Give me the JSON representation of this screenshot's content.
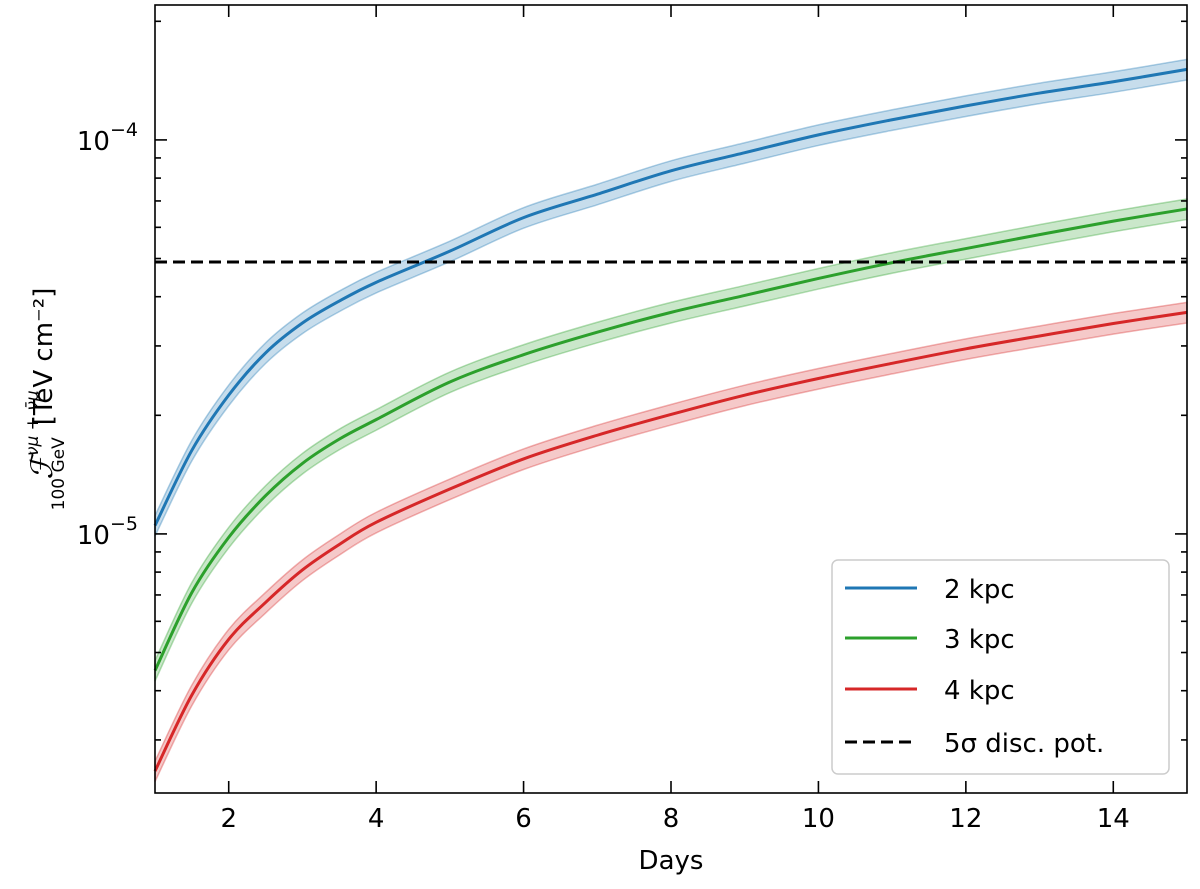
{
  "chart_data": {
    "type": "line",
    "title": "",
    "xlabel": "Days",
    "ylabel_main": "ℱ",
    "ylabel_super": "νμ + ν̄μ",
    "ylabel_sub": "100 GeV",
    "ylabel_units": "[TeV cm⁻²]",
    "xlim": [
      1,
      15
    ],
    "ylim": [
      2.2e-06,
      0.00022
    ],
    "yscale": "log",
    "xticks": [
      2,
      4,
      6,
      8,
      10,
      12,
      14
    ],
    "xtick_labels": [
      "2",
      "4",
      "6",
      "8",
      "10",
      "12",
      "14"
    ],
    "yticks_major": [
      1e-05,
      0.0001
    ],
    "ytick_mantissas": [
      "10",
      "10"
    ],
    "ytick_exponents": [
      "−5",
      "−4"
    ],
    "series": [
      {
        "name": "2 kpc",
        "color": "#1f77b4",
        "band_frac": 0.06,
        "x": [
          1,
          1.5,
          2,
          2.5,
          3,
          3.5,
          4,
          5,
          6,
          7,
          8,
          9,
          10,
          11,
          12,
          13,
          14,
          15
        ],
        "y": [
          1.05e-05,
          1.63e-05,
          2.25e-05,
          2.88e-05,
          3.43e-05,
          3.9e-05,
          4.35e-05,
          5.22e-05,
          6.35e-05,
          7.28e-05,
          8.35e-05,
          9.28e-05,
          0.000103,
          0.0001125,
          0.000122,
          0.0001315,
          0.0001405,
          0.000151
        ]
      },
      {
        "name": "3 kpc",
        "color": "#2ca02c",
        "band_frac": 0.06,
        "x": [
          1,
          1.5,
          2,
          2.5,
          3,
          3.5,
          4,
          5,
          6,
          7,
          8,
          9,
          10,
          11,
          12,
          13,
          14,
          15
        ],
        "y": [
          4.5e-06,
          7.1e-06,
          9.8e-06,
          1.25e-05,
          1.51e-05,
          1.74e-05,
          1.95e-05,
          2.43e-05,
          2.85e-05,
          3.25e-05,
          3.65e-05,
          4.03e-05,
          4.45e-05,
          4.88e-05,
          5.3e-05,
          5.75e-05,
          6.22e-05,
          6.68e-05
        ]
      },
      {
        "name": "4 kpc",
        "color": "#d62728",
        "band_frac": 0.06,
        "x": [
          1,
          1.5,
          2,
          2.5,
          3,
          3.5,
          4,
          5,
          6,
          7,
          8,
          9,
          10,
          11,
          12,
          13,
          14,
          15
        ],
        "y": [
          2.5e-06,
          3.9e-06,
          5.4e-06,
          6.7e-06,
          8.1e-06,
          9.4e-06,
          1.07e-05,
          1.3e-05,
          1.55e-05,
          1.78e-05,
          2.01e-05,
          2.25e-05,
          2.48e-05,
          2.71e-05,
          2.95e-05,
          3.18e-05,
          3.42e-05,
          3.65e-05
        ]
      }
    ],
    "threshold": {
      "name": "5σ disc. pot.",
      "value": 4.9e-05,
      "color": "#000000",
      "style": "dashed"
    },
    "legend": {
      "location": "lower-right",
      "entries": [
        "2 kpc",
        "3 kpc",
        "4 kpc",
        "5σ disc. pot."
      ]
    }
  }
}
